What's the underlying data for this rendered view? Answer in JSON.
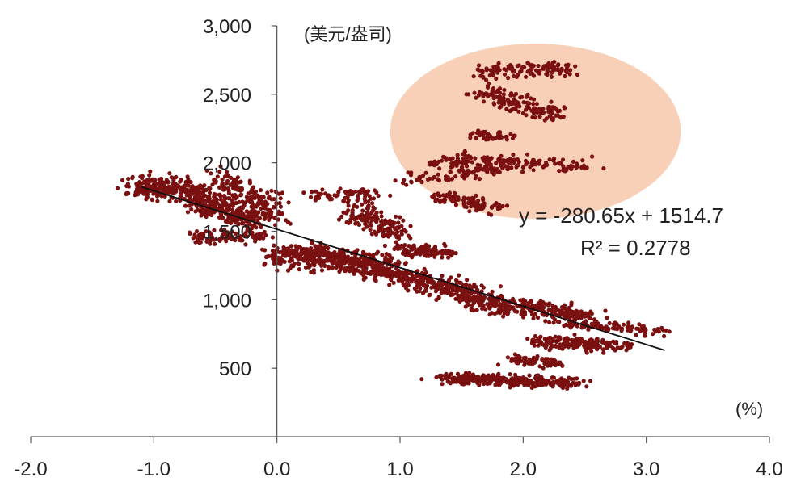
{
  "chart_data": {
    "type": "scatter",
    "y_unit_label": "(美元/盎司)",
    "x_unit_label": "(%)",
    "xlim": [
      -2.0,
      4.0
    ],
    "ylim": [
      0,
      3000
    ],
    "x_ticks": [
      "-2.0",
      "-1.0",
      "0.0",
      "1.0",
      "2.0",
      "3.0",
      "4.0"
    ],
    "y_ticks": [
      "500",
      "1,000",
      "1,500",
      "2,000",
      "2,500",
      "3,000"
    ],
    "point_color": "#7a1010",
    "highlight_color": "#f7c8aa",
    "highlight_region": {
      "cx": 2.1,
      "cy": 2230,
      "rx": 1.18,
      "ry": 640
    },
    "trendline": {
      "slope": -280.65,
      "intercept": 1514.7,
      "x_range": [
        -1.1,
        3.15
      ],
      "color": "#111111"
    },
    "equation": "y = -280.65x + 1514.7",
    "r_squared": "R² = 0.2778",
    "clusters": [
      {
        "x0": -1.15,
        "y0": 1830,
        "x1": -0.55,
        "y1": 1780,
        "n": 260,
        "sx": 0.12,
        "sy": 70
      },
      {
        "x0": -0.7,
        "y0": 1720,
        "x1": -0.2,
        "y1": 1580,
        "n": 200,
        "sx": 0.1,
        "sy": 60
      },
      {
        "x0": -0.45,
        "y0": 1880,
        "x1": 0.0,
        "y1": 1620,
        "n": 180,
        "sx": 0.12,
        "sy": 90
      },
      {
        "x0": -0.7,
        "y0": 1450,
        "x1": -0.1,
        "y1": 1480,
        "n": 90,
        "sx": 0.12,
        "sy": 45
      },
      {
        "x0": 0.0,
        "y0": 1350,
        "x1": 0.9,
        "y1": 1240,
        "n": 460,
        "sx": 0.16,
        "sy": 75
      },
      {
        "x0": 0.6,
        "y0": 1650,
        "x1": 1.0,
        "y1": 1500,
        "n": 150,
        "sx": 0.11,
        "sy": 80
      },
      {
        "x0": 0.3,
        "y0": 1750,
        "x1": 0.8,
        "y1": 1780,
        "n": 60,
        "sx": 0.12,
        "sy": 40
      },
      {
        "x0": 1.0,
        "y0": 1360,
        "x1": 1.4,
        "y1": 1350,
        "n": 110,
        "sx": 0.1,
        "sy": 40
      },
      {
        "x0": 0.9,
        "y0": 1200,
        "x1": 1.7,
        "y1": 1020,
        "n": 260,
        "sx": 0.15,
        "sy": 60
      },
      {
        "x0": 1.6,
        "y0": 1000,
        "x1": 2.5,
        "y1": 870,
        "n": 280,
        "sx": 0.15,
        "sy": 55
      },
      {
        "x0": 2.1,
        "y0": 700,
        "x1": 2.8,
        "y1": 660,
        "n": 200,
        "sx": 0.13,
        "sy": 40
      },
      {
        "x0": 2.4,
        "y0": 830,
        "x1": 3.1,
        "y1": 780,
        "n": 90,
        "sx": 0.12,
        "sy": 35
      },
      {
        "x0": 1.9,
        "y0": 560,
        "x1": 2.3,
        "y1": 540,
        "n": 80,
        "sx": 0.08,
        "sy": 30
      },
      {
        "x0": 1.4,
        "y0": 430,
        "x1": 2.4,
        "y1": 390,
        "n": 320,
        "sx": 0.15,
        "sy": 32
      },
      {
        "x0": 1.05,
        "y0": 1880,
        "x1": 1.9,
        "y1": 1960,
        "n": 80,
        "sx": 0.12,
        "sy": 40
      },
      {
        "x0": 1.25,
        "y0": 1750,
        "x1": 1.8,
        "y1": 1680,
        "n": 90,
        "sx": 0.1,
        "sy": 45
      },
      {
        "x0": 1.3,
        "y0": 2020,
        "x1": 2.5,
        "y1": 1980,
        "n": 170,
        "sx": 0.15,
        "sy": 45
      },
      {
        "x0": 1.6,
        "y0": 2200,
        "x1": 1.95,
        "y1": 2200,
        "n": 40,
        "sx": 0.06,
        "sy": 30
      },
      {
        "x0": 1.65,
        "y0": 2520,
        "x1": 2.3,
        "y1": 2340,
        "n": 140,
        "sx": 0.1,
        "sy": 55
      },
      {
        "x0": 1.6,
        "y0": 2650,
        "x1": 2.35,
        "y1": 2700,
        "n": 110,
        "sx": 0.1,
        "sy": 50
      }
    ]
  }
}
